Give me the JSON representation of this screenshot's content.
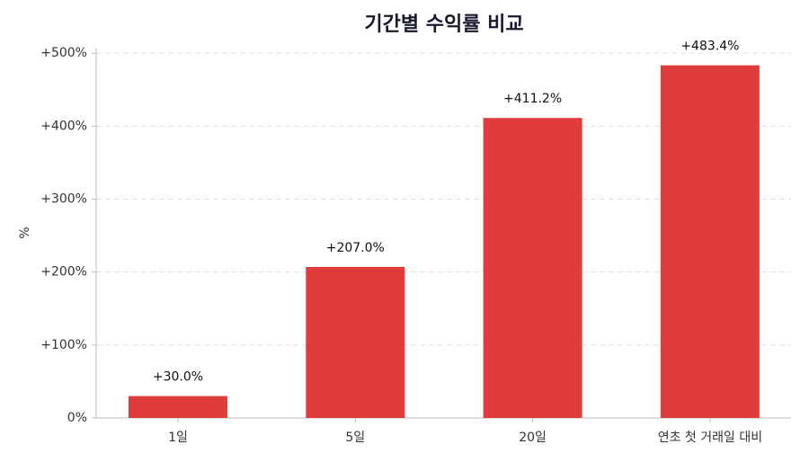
{
  "chart_data": {
    "type": "bar",
    "title": "기간별 수익률 비교",
    "y_label": "%",
    "categories": [
      "1일",
      "5일",
      "20일",
      "연초 첫 거래일 대비"
    ],
    "values": [
      30.0,
      207.0,
      411.2,
      483.4
    ],
    "value_labels": [
      "+30.0%",
      "+207.0%",
      "+411.2%",
      "+483.4%"
    ],
    "color": "#e03c3c",
    "ylim": [
      0,
      507.6
    ],
    "yticks": [
      {
        "value": 0,
        "label": "0%"
      },
      {
        "value": 100,
        "label": "+100%"
      },
      {
        "value": 200,
        "label": "+200%"
      },
      {
        "value": 300,
        "label": "+300%"
      },
      {
        "value": 400,
        "label": "+400%"
      },
      {
        "value": 500,
        "label": "+500%"
      }
    ],
    "grid": true
  }
}
